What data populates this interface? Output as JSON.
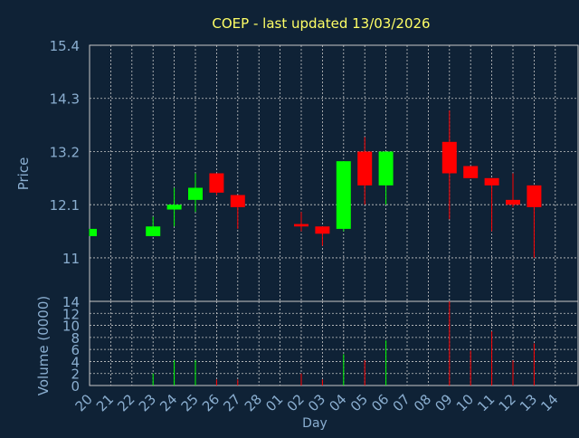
{
  "title": "COEP - last updated 13/03/2026",
  "colors": {
    "background": "#0f2236",
    "title": "#ffff66",
    "axis_text": "#8aaed0",
    "grid": "#c8c8c8",
    "up": "#00ff00",
    "down": "#ff0000"
  },
  "chart_data": [
    {
      "type": "candlestick",
      "title": "COEP - last updated 13/03/2026",
      "ylabel": "Price",
      "ylim": [
        10.1,
        15.4
      ],
      "yticks": [
        "15.4",
        "14.3",
        "13.2",
        "12.1",
        "11"
      ],
      "ytick_values": [
        15.4,
        14.3,
        13.2,
        12.1,
        11.0
      ],
      "x": [
        "20",
        "21",
        "22",
        "23",
        "24",
        "25",
        "26",
        "27",
        "28",
        "01",
        "02",
        "03",
        "04",
        "05",
        "06",
        "07",
        "08",
        "09",
        "10",
        "11",
        "12",
        "13",
        "14"
      ],
      "candles": [
        {
          "x": "20",
          "open": 11.45,
          "close": 11.6,
          "high": 11.6,
          "low": 11.45
        },
        {
          "x": "23",
          "open": 11.45,
          "close": 11.65,
          "high": 11.85,
          "low": 11.45
        },
        {
          "x": "24",
          "open": 12.0,
          "close": 12.1,
          "high": 12.45,
          "low": 11.65
        },
        {
          "x": "25",
          "open": 12.2,
          "close": 12.45,
          "high": 12.75,
          "low": 11.95
        },
        {
          "x": "26",
          "open": 12.75,
          "close": 12.35,
          "high": 12.75,
          "low": 12.3
        },
        {
          "x": "27",
          "open": 12.3,
          "close": 12.05,
          "high": 12.3,
          "low": 11.6
        },
        {
          "x": "02",
          "open": 11.7,
          "close": 11.65,
          "high": 11.95,
          "low": 11.55
        },
        {
          "x": "03",
          "open": 11.65,
          "close": 11.5,
          "high": 11.65,
          "low": 11.25
        },
        {
          "x": "04",
          "open": 11.6,
          "close": 13.0,
          "high": 13.0,
          "low": 11.55
        },
        {
          "x": "05",
          "open": 13.2,
          "close": 12.5,
          "high": 13.5,
          "low": 12.1
        },
        {
          "x": "06",
          "open": 12.5,
          "close": 13.2,
          "high": 13.2,
          "low": 12.1
        },
        {
          "x": "09",
          "open": 13.4,
          "close": 12.75,
          "high": 14.05,
          "low": 11.8
        },
        {
          "x": "10",
          "open": 12.9,
          "close": 12.65,
          "high": 12.9,
          "low": 12.65
        },
        {
          "x": "11",
          "open": 12.65,
          "close": 12.5,
          "high": 12.65,
          "low": 11.55
        },
        {
          "x": "12",
          "open": 12.2,
          "close": 12.1,
          "high": 12.75,
          "low": 12.05
        },
        {
          "x": "13",
          "open": 12.5,
          "close": 12.05,
          "high": 12.5,
          "low": 11.0
        }
      ]
    },
    {
      "type": "bar",
      "ylabel": "Volume (0000)",
      "xlabel": "Day",
      "ylim": [
        0,
        14
      ],
      "yticks": [
        "14",
        "12",
        "10",
        "8",
        "6",
        "4",
        "2",
        "0"
      ],
      "ytick_values": [
        14,
        12,
        10,
        8,
        6,
        4,
        2,
        0
      ],
      "x": [
        "20",
        "21",
        "22",
        "23",
        "24",
        "25",
        "26",
        "27",
        "28",
        "01",
        "02",
        "03",
        "04",
        "05",
        "06",
        "07",
        "08",
        "09",
        "10",
        "11",
        "12",
        "13",
        "14"
      ],
      "bars": [
        {
          "x": "23",
          "value": 2.0,
          "dir": "up"
        },
        {
          "x": "24",
          "value": 4.2,
          "dir": "up"
        },
        {
          "x": "25",
          "value": 4.2,
          "dir": "up"
        },
        {
          "x": "26",
          "value": 1.0,
          "dir": "down"
        },
        {
          "x": "27",
          "value": 1.0,
          "dir": "down"
        },
        {
          "x": "02",
          "value": 2.0,
          "dir": "down"
        },
        {
          "x": "03",
          "value": 1.0,
          "dir": "down"
        },
        {
          "x": "04",
          "value": 5.2,
          "dir": "up"
        },
        {
          "x": "05",
          "value": 4.2,
          "dir": "down"
        },
        {
          "x": "06",
          "value": 7.5,
          "dir": "up"
        },
        {
          "x": "09",
          "value": 14.0,
          "dir": "down"
        },
        {
          "x": "10",
          "value": 5.8,
          "dir": "down"
        },
        {
          "x": "11",
          "value": 9.0,
          "dir": "down"
        },
        {
          "x": "12",
          "value": 4.2,
          "dir": "down"
        },
        {
          "x": "13",
          "value": 7.0,
          "dir": "down"
        }
      ]
    }
  ]
}
